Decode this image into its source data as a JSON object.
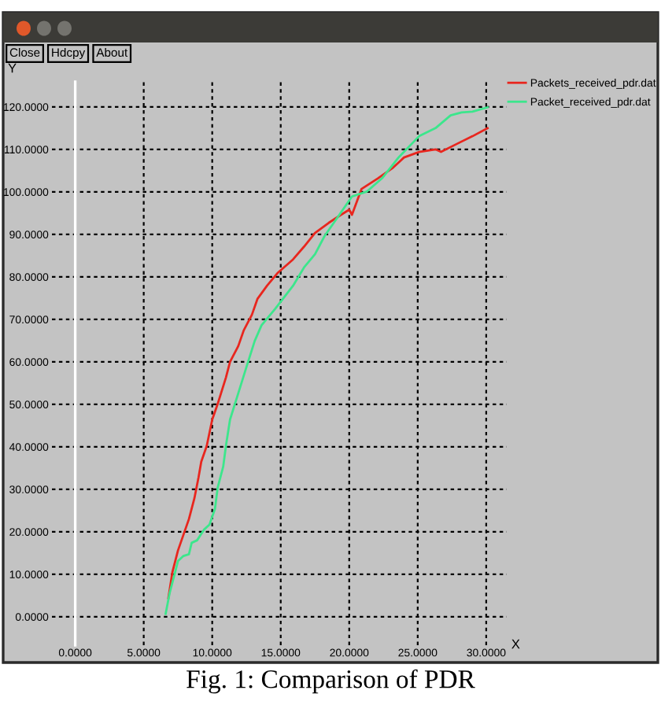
{
  "chart_data": {
    "type": "line",
    "title": "Fig. 1: Comparison of PDR",
    "xlabel": "X",
    "ylabel": "Y",
    "annotations": [
      "Close",
      "Hdcpy",
      "About"
    ],
    "series": [
      {
        "name": "Packets_received_pdr.dat",
        "color": "#e8261e",
        "x": [
          6.8,
          7.1,
          7.5,
          7.9,
          8.3,
          8.7,
          9.0,
          9.2,
          9.6,
          10.0,
          10.4,
          11.0,
          11.3,
          11.9,
          12.3,
          12.9,
          13.3,
          14.0,
          14.8,
          15.9,
          16.7,
          17.5,
          18.5,
          19.4,
          20.0,
          20.2,
          20.9,
          22.1,
          23.2,
          24.0,
          25.1,
          26.3,
          26.7,
          27.8,
          29.0,
          30.1
        ],
        "values": [
          4.4,
          10.6,
          15.6,
          19.3,
          23.0,
          27.9,
          32.8,
          36.5,
          40.2,
          46.4,
          50.1,
          56.3,
          60.0,
          63.7,
          67.4,
          71.1,
          74.8,
          77.9,
          81.0,
          84.1,
          87.1,
          90.3,
          92.7,
          94.6,
          95.8,
          94.6,
          100.7,
          103.2,
          105.7,
          108.1,
          109.4,
          110.0,
          109.4,
          111.2,
          113.1,
          115.0
        ]
      },
      {
        "name": "Packet_received_pdr.dat",
        "color": "#3ce68c",
        "x": [
          6.6,
          6.9,
          7.3,
          7.5,
          7.9,
          8.3,
          8.5,
          8.9,
          9.4,
          9.8,
          10.2,
          10.4,
          10.8,
          11.0,
          11.3,
          11.9,
          12.5,
          13.1,
          13.6,
          14.6,
          15.9,
          16.7,
          17.5,
          18.2,
          19.0,
          20.2,
          21.3,
          22.4,
          23.6,
          25.1,
          26.3,
          27.4,
          28.2,
          29.0,
          30.1
        ],
        "values": [
          0.7,
          5.7,
          10.6,
          13.1,
          14.3,
          14.7,
          17.4,
          18.0,
          20.5,
          21.7,
          25.4,
          30.4,
          35.3,
          40.2,
          46.4,
          52.6,
          58.8,
          64.9,
          68.6,
          72.5,
          77.9,
          82.2,
          85.3,
          89.6,
          93.3,
          98.9,
          100.1,
          103.2,
          108.1,
          113.1,
          115.0,
          118.0,
          118.7,
          118.9,
          119.9
        ]
      }
    ],
    "xlim": [
      -1.7,
      31.5
    ],
    "ylim": [
      -6.7,
      125.9
    ],
    "xticks": [
      {
        "value": 0,
        "label": "0.0000"
      },
      {
        "value": 5,
        "label": "5.0000"
      },
      {
        "value": 10,
        "label": "10.0000"
      },
      {
        "value": 15,
        "label": "15.0000"
      },
      {
        "value": 20,
        "label": "20.0000"
      },
      {
        "value": 25,
        "label": "25.0000"
      },
      {
        "value": 30,
        "label": "30.0000"
      }
    ],
    "yticks": [
      {
        "value": 0,
        "label": "0.0000"
      },
      {
        "value": 10,
        "label": "10.0000"
      },
      {
        "value": 20,
        "label": "20.0000"
      },
      {
        "value": 30,
        "label": "30.0000"
      },
      {
        "value": 40,
        "label": "40.0000"
      },
      {
        "value": 50,
        "label": "50.0000"
      },
      {
        "value": 60,
        "label": "60.0000"
      },
      {
        "value": 70,
        "label": "70.0000"
      },
      {
        "value": 80,
        "label": "80.0000"
      },
      {
        "value": 90,
        "label": "90.0000"
      },
      {
        "value": 100,
        "label": "100.0000"
      },
      {
        "value": 110,
        "label": "110.0000"
      },
      {
        "value": 120,
        "label": "120.0000"
      }
    ],
    "grid": true,
    "legend": "top right",
    "marker": "none",
    "line_style": "solid"
  }
}
